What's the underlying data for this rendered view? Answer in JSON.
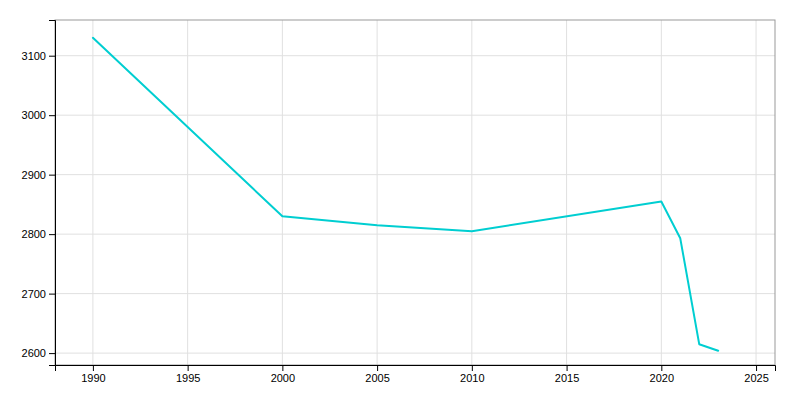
{
  "chart_data": {
    "type": "line",
    "x": [
      1990,
      2000,
      2005,
      2010,
      2020,
      2021,
      2022,
      2023
    ],
    "values": [
      3130,
      2830,
      2815,
      2805,
      2855,
      2793,
      2615,
      2604
    ],
    "color": "#00CED1",
    "xlim": [
      1988,
      2026
    ],
    "ylim": [
      2580,
      3160
    ],
    "xticks": [
      1990,
      1995,
      2000,
      2005,
      2010,
      2015,
      2020,
      2025
    ],
    "yticks": [
      2600,
      2700,
      2800,
      2900,
      3000,
      3100
    ],
    "grid": true
  }
}
